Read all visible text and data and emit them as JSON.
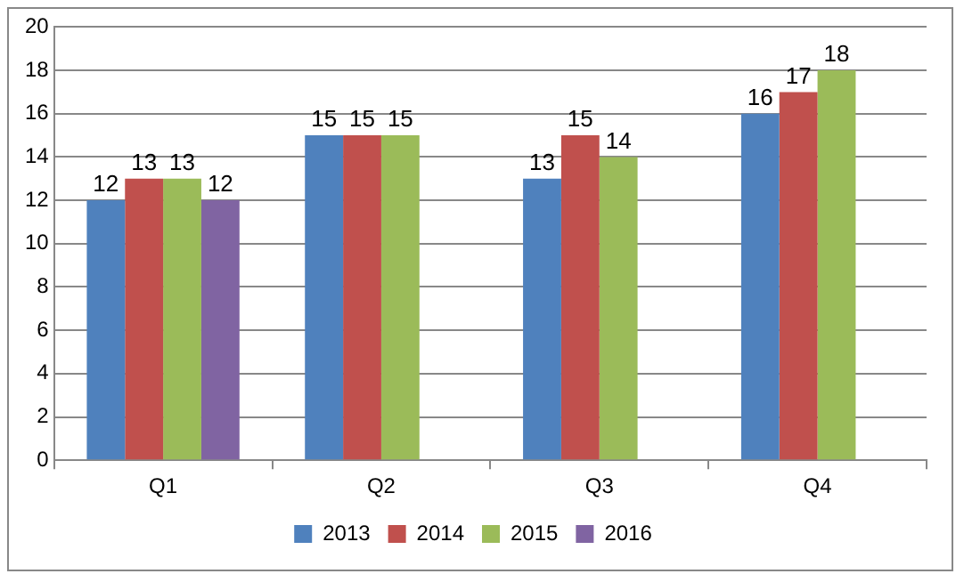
{
  "chart_data": {
    "type": "bar",
    "categories": [
      "Q1",
      "Q2",
      "Q3",
      "Q4"
    ],
    "series": [
      {
        "name": "2013",
        "color": "#4f81bd",
        "values": [
          12,
          15,
          13,
          16
        ]
      },
      {
        "name": "2014",
        "color": "#c0504d",
        "values": [
          13,
          15,
          15,
          17
        ]
      },
      {
        "name": "2015",
        "color": "#9bbb59",
        "values": [
          13,
          15,
          14,
          18
        ]
      },
      {
        "name": "2016",
        "color": "#8064a2",
        "values": [
          12,
          null,
          null,
          null
        ]
      }
    ],
    "ylim": [
      0,
      20
    ],
    "yticks": [
      0,
      2,
      4,
      6,
      8,
      10,
      12,
      14,
      16,
      18,
      20
    ],
    "grid": "y",
    "legend": "bottom",
    "data_labels": true
  }
}
